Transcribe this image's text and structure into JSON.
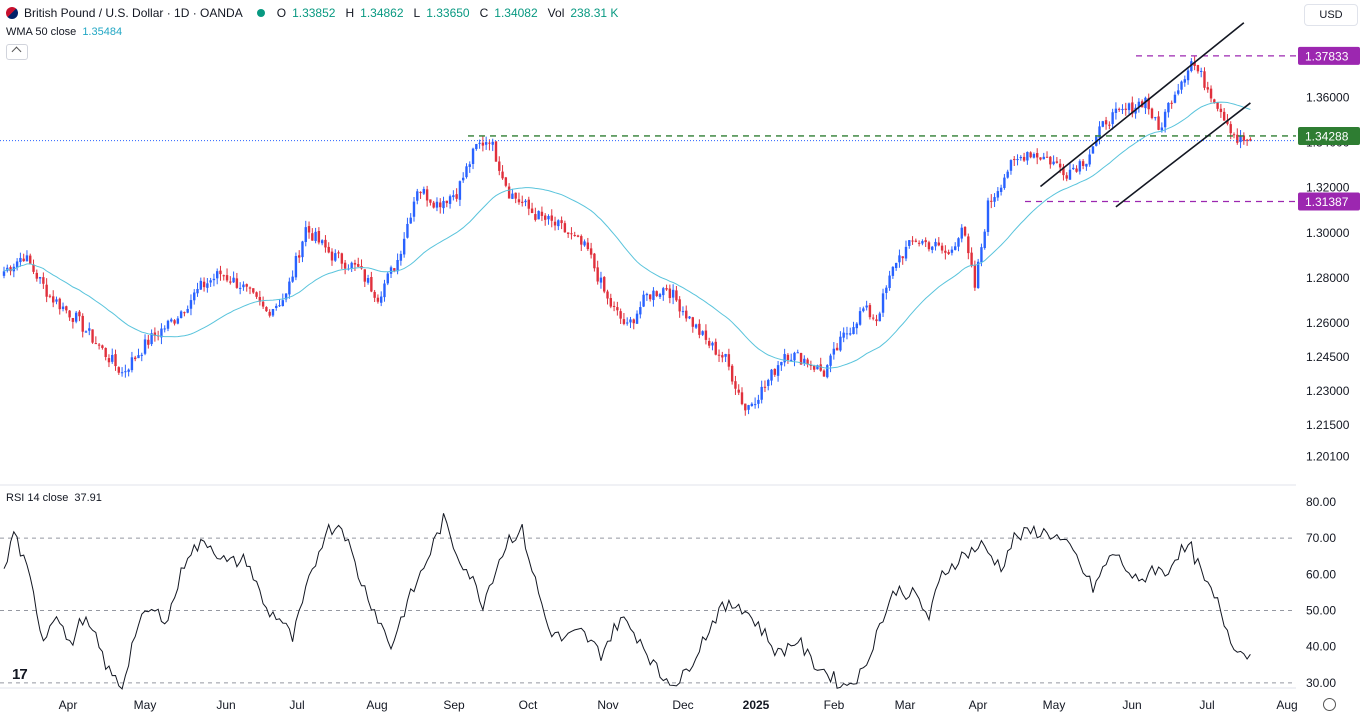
{
  "header": {
    "symbol": "British Pound / U.S. Dollar · 1D · OANDA",
    "o_label": "O",
    "o_value": "1.33852",
    "h_label": "H",
    "h_value": "1.34862",
    "l_label": "L",
    "l_value": "1.33650",
    "c_label": "C",
    "c_value": "1.34082",
    "vol_label": "Vol",
    "vol_value": "238.31 K"
  },
  "currency_button": "USD",
  "wma": {
    "label": "WMA 50 close",
    "value": "1.35484",
    "color": "#22a7c4"
  },
  "rsi": {
    "label": "RSI 14 close",
    "value": "37.91"
  },
  "logo_text": "17",
  "colors": {
    "up": "#2962ff",
    "down": "#e0303c",
    "wma": "#5ac4dc",
    "level_purple": "#9c27b0",
    "level_green": "#2e7d32"
  },
  "chart_data": [
    {
      "type": "candlestick",
      "title": "",
      "ylim": [
        1.195,
        1.392
      ],
      "y_ticks": [
        "1.36000",
        "1.34000",
        "1.32000",
        "1.30000",
        "1.28000",
        "1.26000",
        "1.24500",
        "1.23000",
        "1.21500",
        "1.20100"
      ],
      "x_ticks": [
        "Apr",
        "May",
        "Jun",
        "Jul",
        "Aug",
        "Sep",
        "Oct",
        "Nov",
        "Dec",
        "2025",
        "Feb",
        "Mar",
        "Apr",
        "May",
        "Jun",
        "Jul",
        "Aug"
      ],
      "anchors": [
        {
          "t": 0,
          "v": 1.283
        },
        {
          "t": 6,
          "v": 1.29
        },
        {
          "t": 14,
          "v": 1.272
        },
        {
          "t": 22,
          "v": 1.262
        },
        {
          "t": 30,
          "v": 1.248
        },
        {
          "t": 36,
          "v": 1.238
        },
        {
          "t": 44,
          "v": 1.252
        },
        {
          "t": 52,
          "v": 1.262
        },
        {
          "t": 60,
          "v": 1.276
        },
        {
          "t": 66,
          "v": 1.282
        },
        {
          "t": 72,
          "v": 1.277
        },
        {
          "t": 80,
          "v": 1.265
        },
        {
          "t": 86,
          "v": 1.272
        },
        {
          "t": 92,
          "v": 1.302
        },
        {
          "t": 100,
          "v": 1.29
        },
        {
          "t": 108,
          "v": 1.284
        },
        {
          "t": 114,
          "v": 1.272
        },
        {
          "t": 120,
          "v": 1.288
        },
        {
          "t": 126,
          "v": 1.32
        },
        {
          "t": 132,
          "v": 1.313
        },
        {
          "t": 138,
          "v": 1.318
        },
        {
          "t": 144,
          "v": 1.338
        },
        {
          "t": 148,
          "v": 1.342
        },
        {
          "t": 154,
          "v": 1.318
        },
        {
          "t": 162,
          "v": 1.308
        },
        {
          "t": 170,
          "v": 1.302
        },
        {
          "t": 178,
          "v": 1.292
        },
        {
          "t": 184,
          "v": 1.27
        },
        {
          "t": 190,
          "v": 1.258
        },
        {
          "t": 196,
          "v": 1.272
        },
        {
          "t": 202,
          "v": 1.276
        },
        {
          "t": 208,
          "v": 1.264
        },
        {
          "t": 214,
          "v": 1.252
        },
        {
          "t": 220,
          "v": 1.244
        },
        {
          "t": 226,
          "v": 1.222
        },
        {
          "t": 232,
          "v": 1.232
        },
        {
          "t": 238,
          "v": 1.247
        },
        {
          "t": 244,
          "v": 1.244
        },
        {
          "t": 250,
          "v": 1.238
        },
        {
          "t": 256,
          "v": 1.254
        },
        {
          "t": 262,
          "v": 1.266
        },
        {
          "t": 266,
          "v": 1.262
        },
        {
          "t": 272,
          "v": 1.288
        },
        {
          "t": 278,
          "v": 1.297
        },
        {
          "t": 284,
          "v": 1.294
        },
        {
          "t": 288,
          "v": 1.29
        },
        {
          "t": 292,
          "v": 1.303
        },
        {
          "t": 296,
          "v": 1.276
        },
        {
          "t": 300,
          "v": 1.312
        },
        {
          "t": 306,
          "v": 1.328
        },
        {
          "t": 312,
          "v": 1.336
        },
        {
          "t": 318,
          "v": 1.333
        },
        {
          "t": 324,
          "v": 1.327
        },
        {
          "t": 330,
          "v": 1.333
        },
        {
          "t": 336,
          "v": 1.35
        },
        {
          "t": 342,
          "v": 1.354
        },
        {
          "t": 348,
          "v": 1.359
        },
        {
          "t": 352,
          "v": 1.345
        },
        {
          "t": 356,
          "v": 1.36
        },
        {
          "t": 362,
          "v": 1.376
        },
        {
          "t": 368,
          "v": 1.362
        },
        {
          "t": 372,
          "v": 1.352
        },
        {
          "t": 376,
          "v": 1.341
        }
      ],
      "levels": [
        {
          "label": "1.37833",
          "value": 1.37833,
          "color": "#9c27b0",
          "style": "dashed"
        },
        {
          "label": "1.34288",
          "value": 1.34288,
          "color": "#2e7d32",
          "style": "dashed"
        },
        {
          "label": "1.31387",
          "value": 1.31387,
          "color": "#9c27b0",
          "style": "dashed"
        }
      ],
      "current_price": 1.34082,
      "channel": {
        "upper": [
          [
            316,
            1.3205
          ],
          [
            378,
            1.393
          ]
        ],
        "lower": [
          [
            339,
            1.3115
          ],
          [
            380,
            1.3575
          ]
        ]
      },
      "ma": {
        "name": "WMA 50 close",
        "period": 50
      }
    },
    {
      "type": "line",
      "title": "",
      "name": "RSI 14 close",
      "ylim": [
        25,
        83
      ],
      "y_ticks": [
        "80.00",
        "70.00",
        "60.00",
        "50.00",
        "40.00",
        "30.00"
      ],
      "guides": [
        70,
        50,
        30
      ],
      "anchors": [
        {
          "t": 0,
          "v": 60
        },
        {
          "t": 3,
          "v": 72
        },
        {
          "t": 8,
          "v": 58
        },
        {
          "t": 12,
          "v": 42
        },
        {
          "t": 16,
          "v": 50
        },
        {
          "t": 20,
          "v": 40
        },
        {
          "t": 24,
          "v": 48
        },
        {
          "t": 28,
          "v": 42
        },
        {
          "t": 32,
          "v": 33
        },
        {
          "t": 36,
          "v": 29
        },
        {
          "t": 40,
          "v": 44
        },
        {
          "t": 44,
          "v": 50
        },
        {
          "t": 50,
          "v": 48
        },
        {
          "t": 56,
          "v": 66
        },
        {
          "t": 62,
          "v": 69
        },
        {
          "t": 68,
          "v": 63
        },
        {
          "t": 74,
          "v": 64
        },
        {
          "t": 80,
          "v": 50
        },
        {
          "t": 84,
          "v": 48
        },
        {
          "t": 88,
          "v": 42
        },
        {
          "t": 92,
          "v": 55
        },
        {
          "t": 98,
          "v": 72
        },
        {
          "t": 103,
          "v": 74
        },
        {
          "t": 108,
          "v": 60
        },
        {
          "t": 114,
          "v": 48
        },
        {
          "t": 118,
          "v": 40
        },
        {
          "t": 122,
          "v": 50
        },
        {
          "t": 128,
          "v": 62
        },
        {
          "t": 134,
          "v": 75
        },
        {
          "t": 138,
          "v": 66
        },
        {
          "t": 142,
          "v": 60
        },
        {
          "t": 146,
          "v": 52
        },
        {
          "t": 150,
          "v": 62
        },
        {
          "t": 154,
          "v": 70
        },
        {
          "t": 158,
          "v": 72
        },
        {
          "t": 162,
          "v": 58
        },
        {
          "t": 166,
          "v": 45
        },
        {
          "t": 170,
          "v": 42
        },
        {
          "t": 176,
          "v": 44
        },
        {
          "t": 182,
          "v": 38
        },
        {
          "t": 188,
          "v": 48
        },
        {
          "t": 194,
          "v": 42
        },
        {
          "t": 200,
          "v": 32
        },
        {
          "t": 206,
          "v": 30
        },
        {
          "t": 212,
          "v": 40
        },
        {
          "t": 218,
          "v": 50
        },
        {
          "t": 224,
          "v": 52
        },
        {
          "t": 230,
          "v": 46
        },
        {
          "t": 236,
          "v": 38
        },
        {
          "t": 242,
          "v": 42
        },
        {
          "t": 246,
          "v": 36
        },
        {
          "t": 252,
          "v": 32
        },
        {
          "t": 256,
          "v": 29
        },
        {
          "t": 262,
          "v": 33
        },
        {
          "t": 266,
          "v": 44
        },
        {
          "t": 272,
          "v": 56
        },
        {
          "t": 278,
          "v": 54
        },
        {
          "t": 282,
          "v": 48
        },
        {
          "t": 286,
          "v": 60
        },
        {
          "t": 292,
          "v": 65
        },
        {
          "t": 298,
          "v": 68
        },
        {
          "t": 304,
          "v": 62
        },
        {
          "t": 308,
          "v": 70
        },
        {
          "t": 314,
          "v": 72
        },
        {
          "t": 320,
          "v": 71
        },
        {
          "t": 326,
          "v": 66
        },
        {
          "t": 332,
          "v": 56
        },
        {
          "t": 338,
          "v": 66
        },
        {
          "t": 342,
          "v": 62
        },
        {
          "t": 346,
          "v": 57
        },
        {
          "t": 350,
          "v": 62
        },
        {
          "t": 354,
          "v": 60
        },
        {
          "t": 358,
          "v": 66
        },
        {
          "t": 362,
          "v": 67
        },
        {
          "t": 366,
          "v": 58
        },
        {
          "t": 370,
          "v": 52
        },
        {
          "t": 374,
          "v": 42
        },
        {
          "t": 378,
          "v": 37.91
        }
      ]
    }
  ]
}
